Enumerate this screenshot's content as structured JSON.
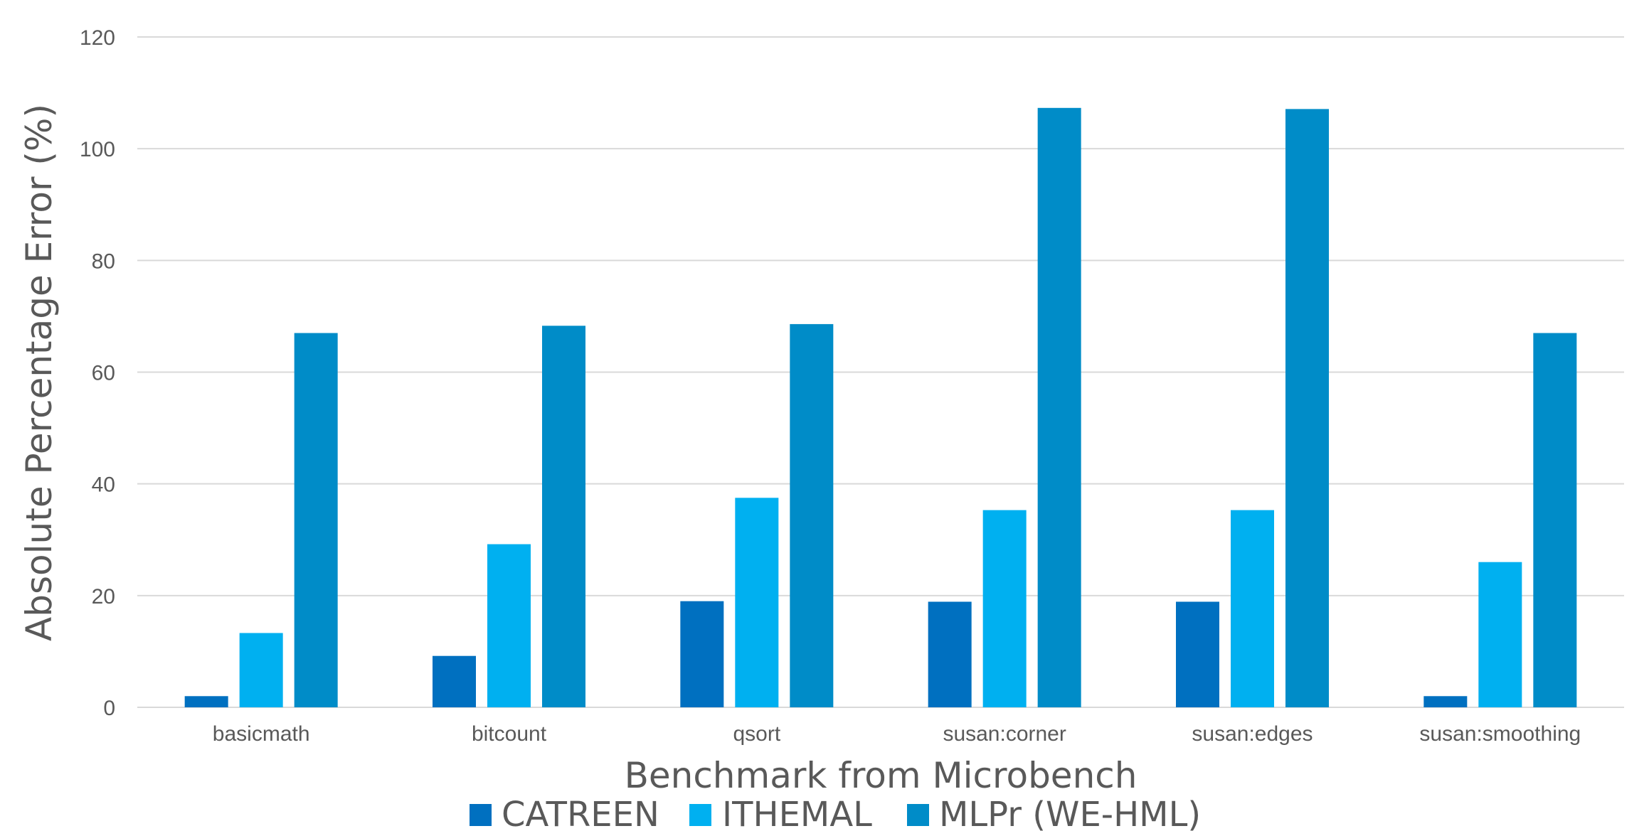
{
  "chart_data": {
    "type": "bar",
    "title": "",
    "xlabel": "Benchmark from Microbench",
    "ylabel": "Absolute Percentage Error (%)",
    "ylim": [
      0,
      120
    ],
    "yticks": [
      0,
      20,
      40,
      60,
      80,
      100,
      120
    ],
    "grid": true,
    "legend_position": "bottom",
    "categories": [
      "basicmath",
      "bitcount",
      "qsort",
      "susan:corner",
      "susan:edges",
      "susan:smoothing"
    ],
    "series": [
      {
        "name": "CATREEN",
        "color": "#0070C0",
        "values": [
          2,
          9.2,
          19,
          18.9,
          18.9,
          2
        ]
      },
      {
        "name": "ITHEMAL",
        "color": "#00B0F0",
        "values": [
          13.3,
          29.2,
          37.5,
          35.3,
          35.3,
          26
        ]
      },
      {
        "name": "MLPr (WE-HML)",
        "color": "#008CC8",
        "values": [
          67,
          68.3,
          68.6,
          107.3,
          107.1,
          67
        ]
      }
    ]
  }
}
